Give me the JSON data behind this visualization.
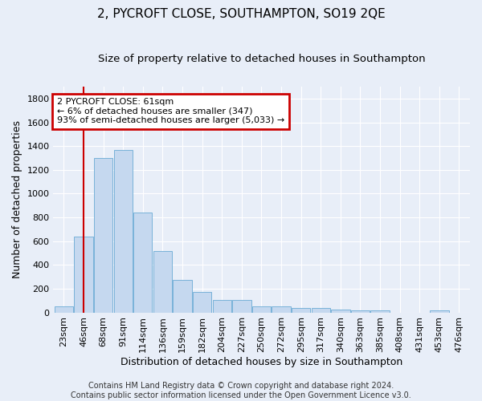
{
  "title": "2, PYCROFT CLOSE, SOUTHAMPTON, SO19 2QE",
  "subtitle": "Size of property relative to detached houses in Southampton",
  "xlabel": "Distribution of detached houses by size in Southampton",
  "ylabel": "Number of detached properties",
  "footer_line1": "Contains HM Land Registry data © Crown copyright and database right 2024.",
  "footer_line2": "Contains public sector information licensed under the Open Government Licence v3.0.",
  "categories": [
    "23sqm",
    "46sqm",
    "68sqm",
    "91sqm",
    "114sqm",
    "136sqm",
    "159sqm",
    "182sqm",
    "204sqm",
    "227sqm",
    "250sqm",
    "272sqm",
    "295sqm",
    "317sqm",
    "340sqm",
    "363sqm",
    "385sqm",
    "408sqm",
    "431sqm",
    "453sqm",
    "476sqm"
  ],
  "values": [
    50,
    638,
    1300,
    1370,
    840,
    515,
    275,
    175,
    105,
    105,
    55,
    55,
    35,
    35,
    25,
    15,
    15,
    0,
    0,
    15,
    0
  ],
  "bar_color": "#c5d8ef",
  "bar_edge_color": "#6aaad4",
  "annotation_line1": "2 PYCROFT CLOSE: 61sqm",
  "annotation_line2": "← 6% of detached houses are smaller (347)",
  "annotation_line3": "93% of semi-detached houses are larger (5,033) →",
  "annotation_box_edge_color": "#cc0000",
  "vline_color": "#cc0000",
  "vline_x": 1.0,
  "ylim": [
    0,
    1900
  ],
  "yticks": [
    0,
    200,
    400,
    600,
    800,
    1000,
    1200,
    1400,
    1600,
    1800
  ],
  "bg_color": "#e8eef8",
  "plot_bg_color": "#e8eef8",
  "grid_color": "#ffffff",
  "title_fontsize": 11,
  "subtitle_fontsize": 9.5,
  "axis_label_fontsize": 9,
  "tick_fontsize": 8,
  "footer_fontsize": 7,
  "annotation_fontsize": 8
}
